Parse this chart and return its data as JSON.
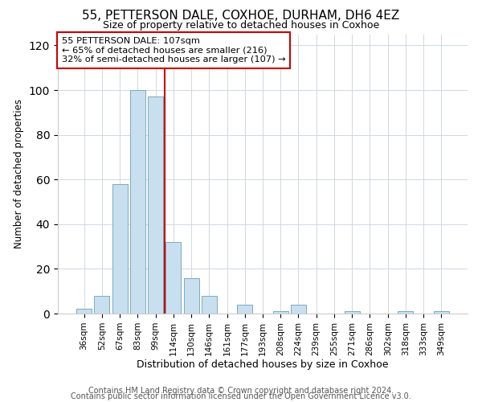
{
  "title": "55, PETTERSON DALE, COXHOE, DURHAM, DH6 4EZ",
  "subtitle": "Size of property relative to detached houses in Coxhoe",
  "xlabel": "Distribution of detached houses by size in Coxhoe",
  "ylabel": "Number of detached properties",
  "bar_labels": [
    "36sqm",
    "52sqm",
    "67sqm",
    "83sqm",
    "99sqm",
    "114sqm",
    "130sqm",
    "146sqm",
    "161sqm",
    "177sqm",
    "193sqm",
    "208sqm",
    "224sqm",
    "239sqm",
    "255sqm",
    "271sqm",
    "286sqm",
    "302sqm",
    "318sqm",
    "333sqm",
    "349sqm"
  ],
  "bar_values": [
    2,
    8,
    58,
    100,
    97,
    32,
    16,
    8,
    0,
    4,
    0,
    1,
    4,
    0,
    0,
    1,
    0,
    0,
    1,
    0,
    1
  ],
  "bar_color": "#c8dff0",
  "bar_edge_color": "#7aaabf",
  "vline_x": 4.5,
  "vline_color": "#cc0000",
  "annotation_line1": "55 PETTERSON DALE: 107sqm",
  "annotation_line2": "← 65% of detached houses are smaller (216)",
  "annotation_line3": "32% of semi-detached houses are larger (107) →",
  "annotation_box_color": "#ffffff",
  "annotation_box_edge": "#cc0000",
  "ylim": [
    0,
    125
  ],
  "yticks": [
    0,
    20,
    40,
    60,
    80,
    100,
    120
  ],
  "footer1": "Contains HM Land Registry data © Crown copyright and database right 2024.",
  "footer2": "Contains public sector information licensed under the Open Government Licence v3.0.",
  "background_color": "#ffffff",
  "grid_color": "#d0d8e0"
}
